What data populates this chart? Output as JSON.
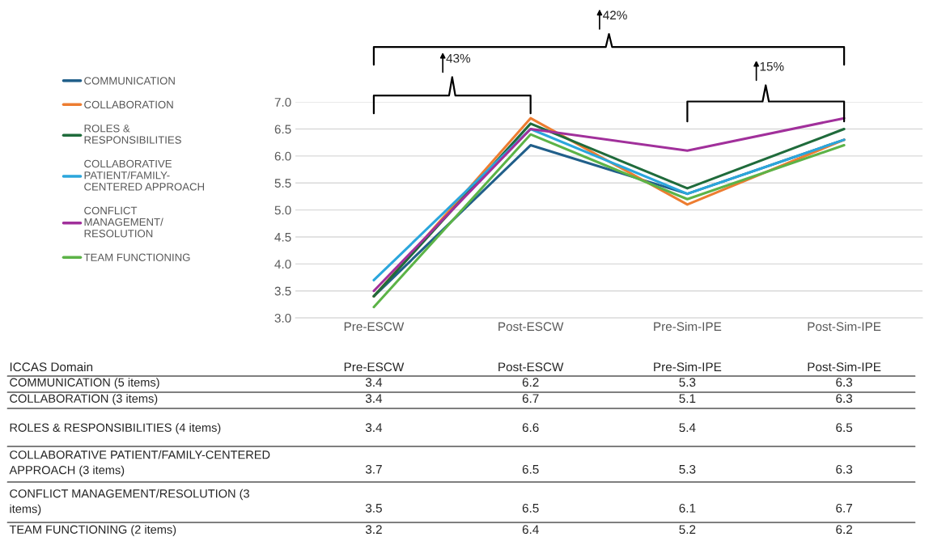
{
  "chart_data": {
    "type": "line",
    "categories": [
      "Pre-ESCW",
      "Post-ESCW",
      "Pre-Sim-IPE",
      "Post-Sim-IPE"
    ],
    "series": [
      {
        "name": "COMMUNICATION",
        "color": "#215f8a",
        "values": [
          3.4,
          6.2,
          5.3,
          6.3
        ]
      },
      {
        "name": "COLLABORATION",
        "color": "#ed7d31",
        "values": [
          3.4,
          6.7,
          5.1,
          6.3
        ]
      },
      {
        "name": "ROLES &\nRESPONSIBILITIES",
        "color": "#1f6b3b",
        "values": [
          3.4,
          6.6,
          5.4,
          6.5
        ]
      },
      {
        "name": "COLLABORATIVE\nPATIENT/FAMILY-\nCENTERED APPROACH",
        "color": "#2ba6dc",
        "values": [
          3.7,
          6.5,
          5.3,
          6.3
        ]
      },
      {
        "name": "CONFLICT\nMANAGEMENT/\nRESOLUTION",
        "color": "#a1309b",
        "values": [
          3.5,
          6.5,
          6.1,
          6.7
        ]
      },
      {
        "name": "TEAM FUNCTIONING",
        "color": "#5cb347",
        "values": [
          3.2,
          6.4,
          5.2,
          6.2
        ]
      }
    ],
    "ylim": [
      3,
      7
    ],
    "yticks": [
      {
        "value": 3,
        "label": "3.0"
      },
      {
        "value": 3.5,
        "label": "3.5"
      },
      {
        "value": 4,
        "label": "4.0"
      },
      {
        "value": 4.5,
        "label": "4.5"
      },
      {
        "value": 5,
        "label": "5.0"
      },
      {
        "value": 5.5,
        "label": "5.5"
      },
      {
        "value": 6,
        "label": "6.0"
      },
      {
        "value": 6.5,
        "label": "6.5"
      },
      {
        "value": 7,
        "label": "7.0"
      }
    ],
    "grid": "y",
    "legend": "left",
    "marker": "none",
    "line_style": "solid",
    "data_labels": true,
    "annotations": [
      "43%",
      "15%",
      "42%",
      "ICCAS Domain",
      "COMMUNICATION (5 items)",
      "COLLABORATION (3 items)",
      "ROLES & RESPONSIBILITIES (4 items)",
      "COLLABORATIVE PATIENT/FAMILY-CENTERED\nAPPROACH (3 items)",
      "CONFLICT MANAGEMENT/RESOLUTION (3\nitems)",
      "TEAM FUNCTIONING (2 items)"
    ]
  }
}
